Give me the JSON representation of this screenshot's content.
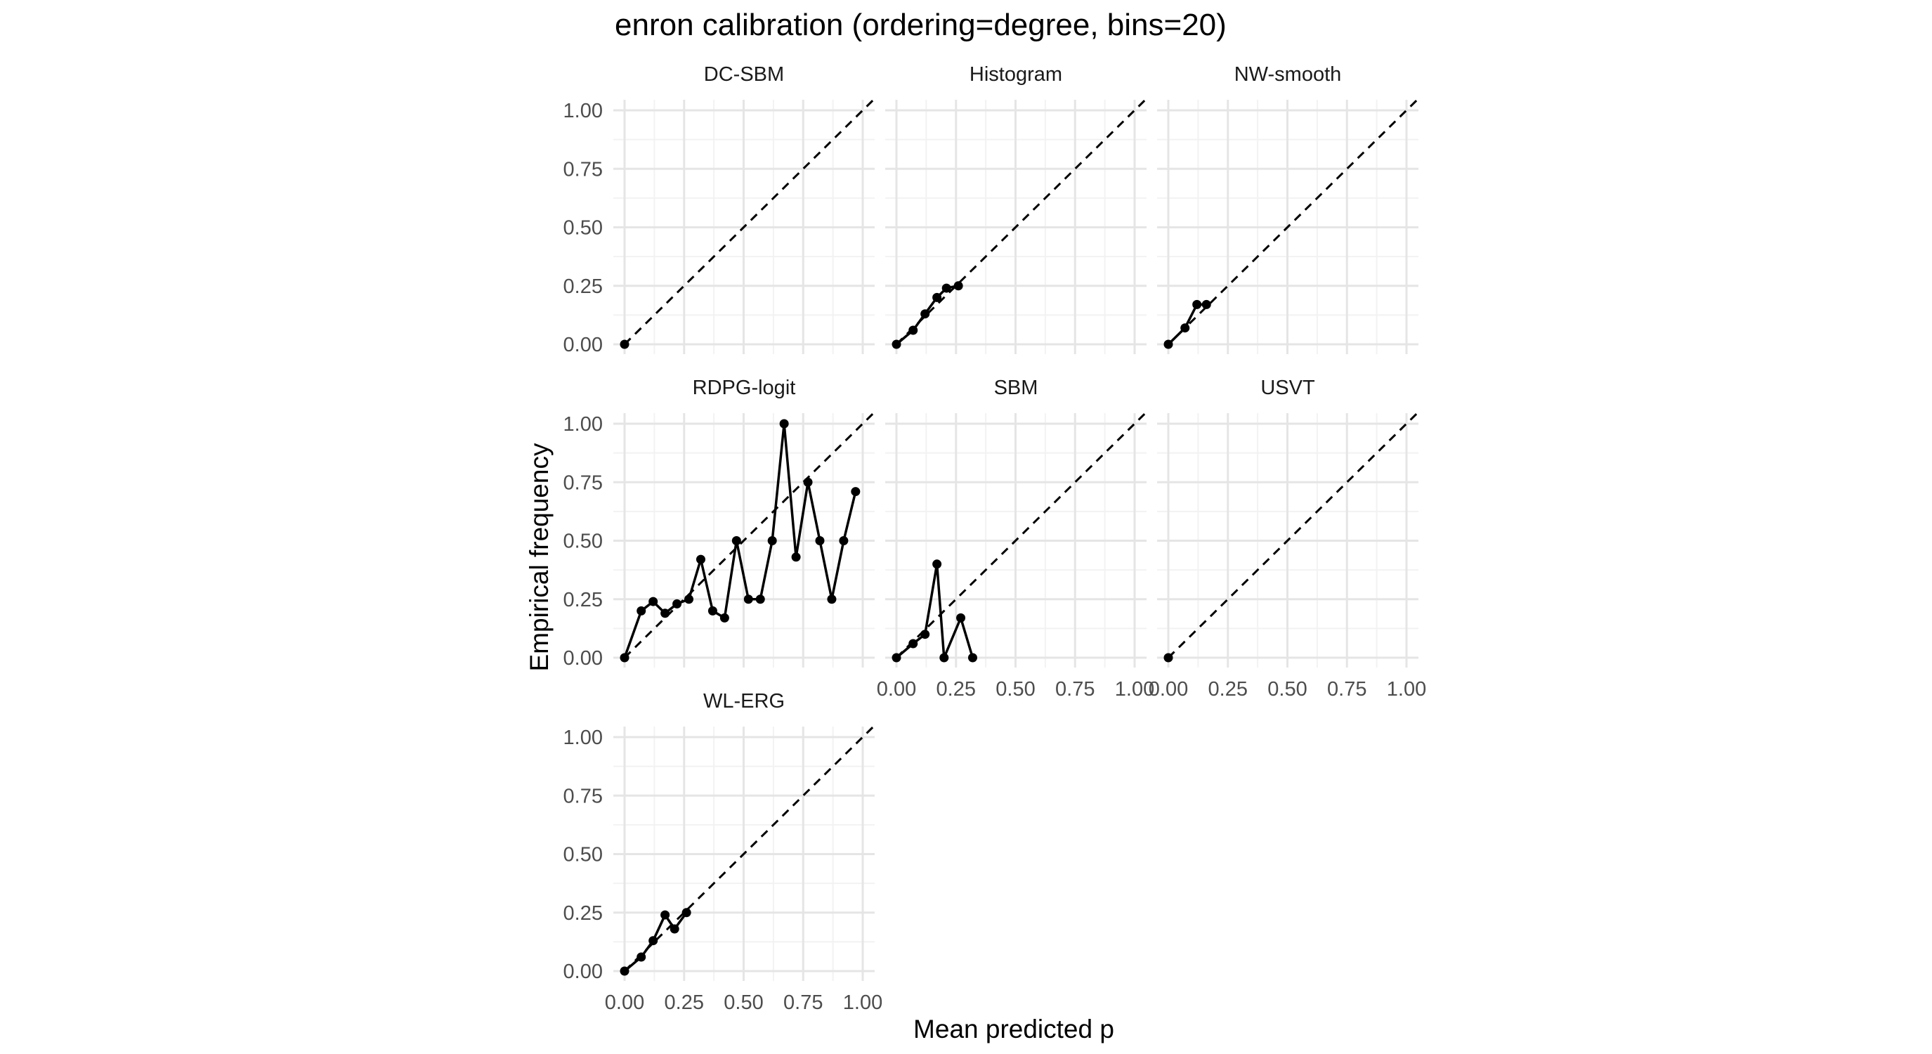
{
  "chart_data": {
    "type": "line",
    "title": "enron calibration (ordering=degree, bins=20)",
    "xlabel": "Mean predicted p",
    "ylabel": "Empirical frequency",
    "xlim": [
      0,
      1
    ],
    "ylim": [
      0,
      1
    ],
    "x_ticks": [
      "0.00",
      "0.25",
      "0.50",
      "0.75",
      "1.00"
    ],
    "y_ticks": [
      "0.00",
      "0.25",
      "0.50",
      "0.75",
      "1.00"
    ],
    "grid": true,
    "reference_line": "y = x (dashed)",
    "panels": [
      {
        "name": "DC-SBM",
        "x": [
          0.0
        ],
        "y": [
          0.0
        ]
      },
      {
        "name": "Histogram",
        "x": [
          0.0,
          0.07,
          0.12,
          0.17,
          0.21,
          0.26
        ],
        "y": [
          0.0,
          0.06,
          0.13,
          0.2,
          0.24,
          0.25
        ]
      },
      {
        "name": "NW-smooth",
        "x": [
          0.0,
          0.07,
          0.12,
          0.16
        ],
        "y": [
          0.0,
          0.07,
          0.17,
          0.17
        ]
      },
      {
        "name": "RDPG-logit",
        "x": [
          0.0,
          0.07,
          0.12,
          0.17,
          0.22,
          0.27,
          0.32,
          0.37,
          0.42,
          0.47,
          0.52,
          0.57,
          0.62,
          0.67,
          0.72,
          0.77,
          0.82,
          0.87,
          0.92,
          0.97
        ],
        "y": [
          0.0,
          0.2,
          0.24,
          0.19,
          0.23,
          0.25,
          0.42,
          0.2,
          0.17,
          0.5,
          0.25,
          0.25,
          0.5,
          1.0,
          0.43,
          0.75,
          0.5,
          0.25,
          0.5,
          0.71
        ]
      },
      {
        "name": "SBM",
        "x": [
          0.0,
          0.07,
          0.12,
          0.17,
          0.2,
          0.27,
          0.32
        ],
        "y": [
          0.0,
          0.06,
          0.1,
          0.4,
          0.0,
          0.17,
          0.0
        ]
      },
      {
        "name": "USVT",
        "x": [
          0.0
        ],
        "y": [
          0.0
        ]
      },
      {
        "name": "WL-ERG",
        "x": [
          0.0,
          0.07,
          0.12,
          0.17,
          0.21,
          0.26
        ],
        "y": [
          0.0,
          0.06,
          0.13,
          0.24,
          0.18,
          0.25
        ]
      }
    ]
  }
}
